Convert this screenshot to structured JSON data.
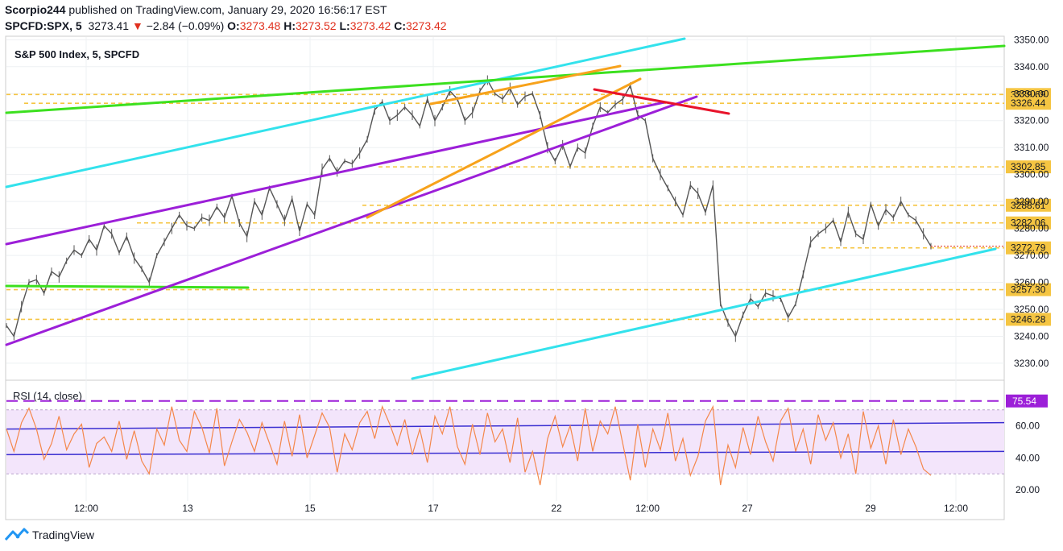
{
  "header": {
    "author": "Scorpio244",
    "published_text": "published on TradingView.com, January 29, 2020 16:56:17 EST",
    "symbol": "SPCFD:SPX, 5",
    "last": "3273.41",
    "change": "−2.84 (−0.09%)",
    "o_label": "O:",
    "o_value": "3273.48",
    "h_label": "H:",
    "h_value": "3273.52",
    "l_label": "L:",
    "l_value": "3273.42",
    "c_label": "C:",
    "c_value": "3273.42"
  },
  "footer": {
    "brand": "TradingView"
  },
  "colors": {
    "candle": "#555555",
    "grid": "#eef0f3",
    "border": "#cccccc",
    "level": "#f5c542",
    "cyan": "#33e2ec",
    "green": "#3ce01f",
    "purple": "#9c1fd8",
    "orange": "#f7a21b",
    "red": "#e8132a",
    "rsi": "#f4874b",
    "rsi_band": "#f3e5fb",
    "rsi_mid": "#3a2fd1"
  },
  "chart_data": [
    {
      "type": "line",
      "title": "S&P 500 Index, 5, SPCFD",
      "y_ticks": [
        "3350.00",
        "3340.00",
        "3330.00",
        "3320.00",
        "3310.00",
        "3300.00",
        "3290.00",
        "3280.00",
        "3270.00",
        "3260.00",
        "3250.00",
        "3240.00",
        "3230.00"
      ],
      "ylim": [
        3224,
        3351
      ],
      "x_ticks": [
        "12:00",
        "13",
        "15",
        "17",
        "22",
        "12:00",
        "27",
        "29",
        "12:00"
      ],
      "levels": [
        "3329.69",
        "3326.44",
        "3302.85",
        "3288.61",
        "3282.06",
        "3272.79",
        "3257.30",
        "3246.28"
      ],
      "last_price": 3273.41,
      "series": [
        {
          "values": [
            3244,
            3240,
            3251,
            3260,
            3261,
            3256,
            3264,
            3262,
            3268,
            3272,
            3270,
            3276,
            3272,
            3281,
            3278,
            3271,
            3277,
            3269,
            3265,
            3260,
            3270,
            3275,
            3280,
            3285,
            3281,
            3280,
            3284,
            3283,
            3288,
            3284,
            3292,
            3282,
            3277,
            3290,
            3285,
            3295,
            3289,
            3283,
            3291,
            3279,
            3289,
            3285,
            3302,
            3306,
            3301,
            3305,
            3304,
            3308,
            3313,
            3324,
            3327,
            3320,
            3322,
            3325,
            3322,
            3318,
            3328,
            3320,
            3325,
            3331,
            3328,
            3320,
            3323,
            3331,
            3335,
            3330,
            3328,
            3332,
            3326,
            3329,
            3330,
            3322,
            3310,
            3305,
            3311,
            3303,
            3310,
            3308,
            3318,
            3325,
            3323,
            3326,
            3328,
            3333,
            3322,
            3320,
            3306,
            3300,
            3295,
            3290,
            3285,
            3296,
            3293,
            3286,
            3296,
            3252,
            3245,
            3240,
            3248,
            3254,
            3251,
            3256,
            3255,
            3254,
            3247,
            3252,
            3263,
            3275,
            3278,
            3280,
            3283,
            3275,
            3286,
            3278,
            3276,
            3289,
            3281,
            3287,
            3284,
            3290,
            3285,
            3283,
            3278,
            3273.41
          ]
        }
      ]
    },
    {
      "type": "line",
      "title": "RSI (14, close)",
      "y_ticks": [
        "60.00",
        "40.00",
        "20.00"
      ],
      "ylim": [
        13,
        88
      ],
      "band": [
        30,
        70
      ],
      "marked_level": "75.54",
      "series": [
        {
          "values": [
            58,
            44,
            62,
            71,
            58,
            39,
            49,
            66,
            45,
            55,
            61,
            34,
            49,
            53,
            44,
            63,
            39,
            57,
            38,
            30,
            58,
            48,
            72,
            51,
            44,
            69,
            59,
            43,
            71,
            35,
            50,
            64,
            56,
            44,
            62,
            49,
            36,
            63,
            41,
            67,
            40,
            54,
            68,
            59,
            31,
            55,
            45,
            62,
            69,
            52,
            72,
            61,
            48,
            64,
            42,
            58,
            37,
            66,
            55,
            72,
            47,
            36,
            61,
            42,
            68,
            50,
            58,
            37,
            65,
            31,
            44,
            23,
            52,
            66,
            47,
            60,
            38,
            71,
            44,
            63,
            55,
            72,
            49,
            26,
            61,
            34,
            58,
            45,
            68,
            38,
            52,
            29,
            41,
            63,
            72,
            23,
            48,
            34,
            59,
            42,
            66,
            50,
            38,
            63,
            71,
            44,
            58,
            36,
            67,
            51,
            62,
            40,
            55,
            30,
            69,
            46,
            60,
            36,
            64,
            42,
            58,
            47,
            33,
            29
          ]
        }
      ]
    }
  ]
}
